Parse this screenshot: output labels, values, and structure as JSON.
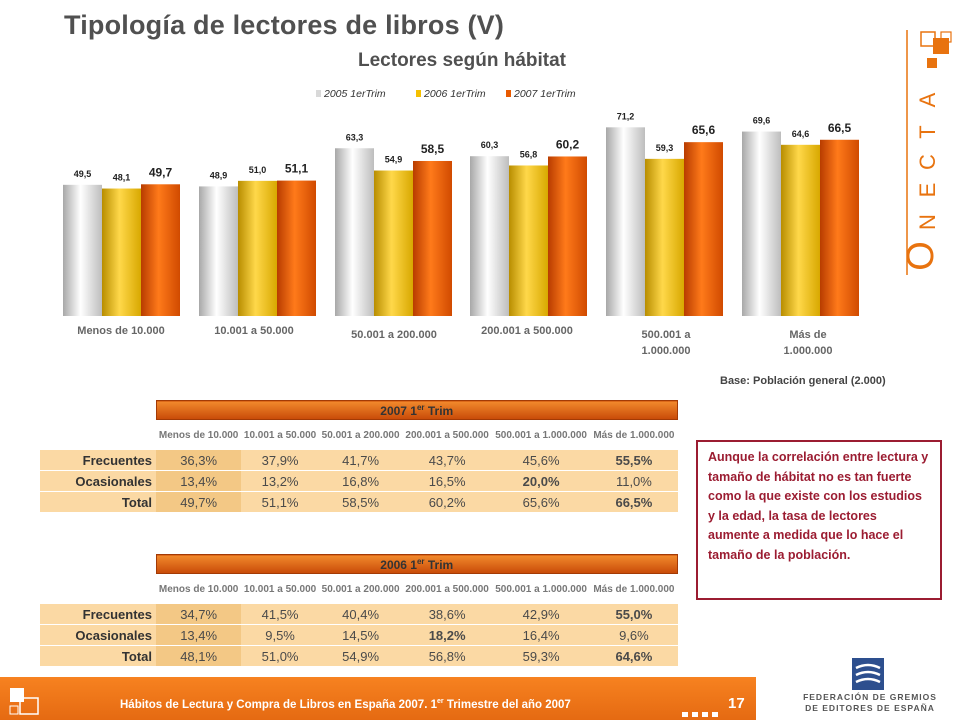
{
  "title": "Tipología de lectores de libros (V)",
  "subtitle": "Lectores según hábitat",
  "base_note": "Base: Población general (2.000)",
  "brand": {
    "name": "CONECTA"
  },
  "chart_data": {
    "type": "bar",
    "title": "Lectores según hábitat",
    "categories": [
      "Menos de 10.000",
      "10.001 a 50.000",
      "50.001 a 200.000",
      "200.001 a 500.000",
      "500.001 a 1.000.000",
      "Más de 1.000.000"
    ],
    "series": [
      {
        "name": "2005 1erTrim",
        "color": "#d9d9d9",
        "values": [
          49.5,
          48.9,
          63.3,
          60.3,
          71.2,
          69.6
        ],
        "labels": [
          "49,5",
          "48,9",
          "63,3",
          "60,3",
          "71,2",
          "69,6"
        ]
      },
      {
        "name": "2006 1erTrim",
        "color": "#f5c000",
        "values": [
          48.1,
          51.0,
          54.9,
          56.8,
          59.3,
          64.6
        ],
        "labels": [
          "48,1",
          "51,0",
          "54,9",
          "56,8",
          "59,3",
          "64,6"
        ]
      },
      {
        "name": "2007 1erTrim",
        "color": "#e85a00",
        "values": [
          49.7,
          51.1,
          58.5,
          60.2,
          65.6,
          66.5
        ],
        "labels": [
          "49,7",
          "51,1",
          "58,5",
          "60,2",
          "65,6",
          "66,5"
        ]
      }
    ],
    "ylim": [
      0,
      80
    ],
    "legend": "top",
    "grid": false
  },
  "table_2007": {
    "title": "2007 1",
    "title_sup": "er",
    "title_suffix": " Trim",
    "headers": [
      "Menos de 10.000",
      "10.001 a 50.000",
      "50.001 a 200.000",
      "200.001 a 500.000",
      "500.001 a 1.000.000",
      "Más de 1.000.000"
    ],
    "rows": [
      {
        "label": "Frecuentes",
        "cells": [
          "36,3%",
          "37,9%",
          "41,7%",
          "43,7%",
          "45,6%",
          "55,5%"
        ]
      },
      {
        "label": "Ocasionales",
        "cells": [
          "13,4%",
          "13,2%",
          "16,8%",
          "16,5%",
          "20,0%",
          "11,0%"
        ]
      },
      {
        "label": "Total",
        "cells": [
          "49,7%",
          "51,1%",
          "58,5%",
          "60,2%",
          "65,6%",
          "66,5%"
        ]
      }
    ]
  },
  "table_2006": {
    "title": "2006 1",
    "title_sup": "er",
    "title_suffix": " Trim",
    "headers": [
      "Menos de 10.000",
      "10.001 a 50.000",
      "50.001 a 200.000",
      "200.001 a 500.000",
      "500.001 a 1.000.000",
      "Más de 1.000.000"
    ],
    "rows": [
      {
        "label": "Frecuentes",
        "cells": [
          "34,7%",
          "41,5%",
          "40,4%",
          "38,6%",
          "42,9%",
          "55,0%"
        ]
      },
      {
        "label": "Ocasionales",
        "cells": [
          "13,4%",
          "9,5%",
          "14,5%",
          "18,2%",
          "16,4%",
          "9,6%"
        ]
      },
      {
        "label": "Total",
        "cells": [
          "48,1%",
          "51,0%",
          "54,9%",
          "56,8%",
          "59,3%",
          "64,6%"
        ]
      }
    ]
  },
  "note": "Aunque la correlación entre lectura y tamaño de hábitat no es tan fuerte como la que existe con los estudios y la edad, la tasa de lectores aumente a medida que lo hace el tamaño de la población.",
  "footer": {
    "text_before": "Hábitos de Lectura y Compra de Libros en España 2007. 1",
    "text_sup": "er",
    "text_after": " Trimestre del año 2007",
    "page": "17"
  },
  "federation": {
    "line1": "FEDERACIÓN DE GREMIOS",
    "line2": "DE EDITORES DE ESPAÑA"
  }
}
